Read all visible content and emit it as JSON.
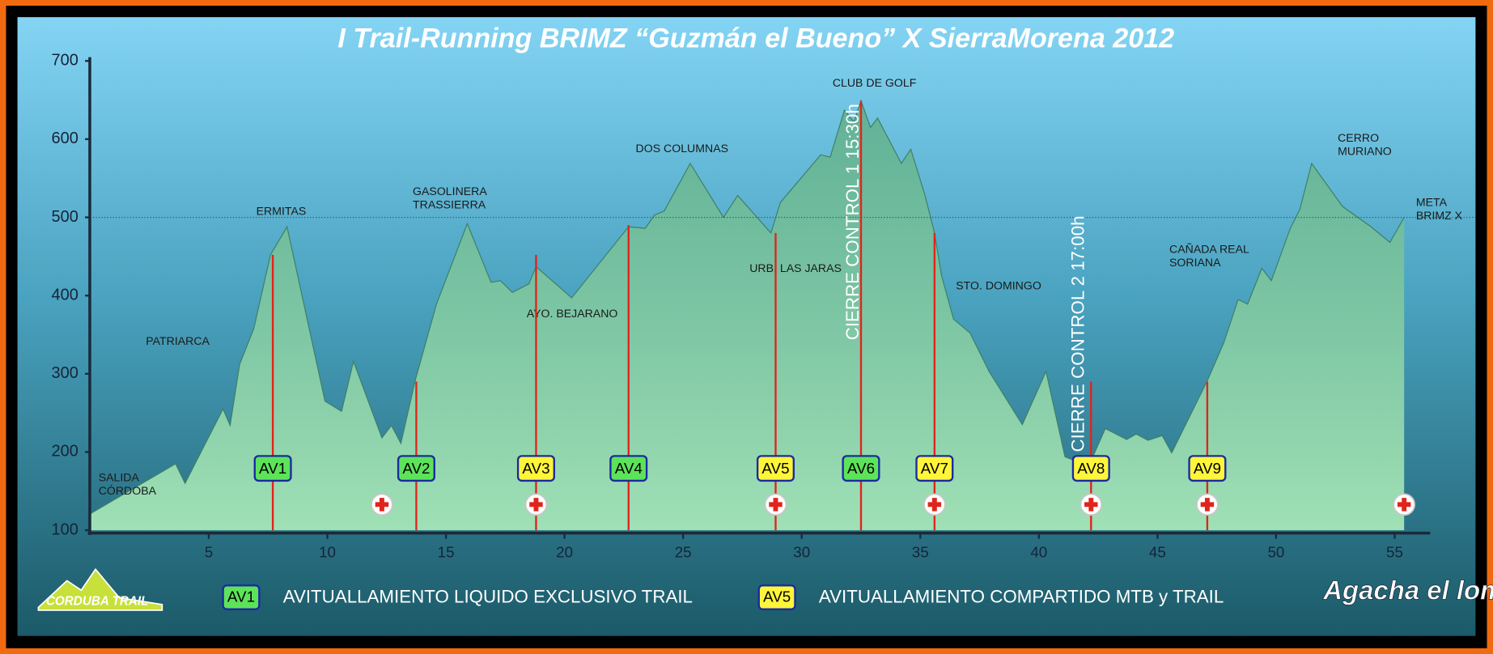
{
  "chart_data": {
    "type": "area",
    "title": "I Trail-Running BRIMZ “Guzmán el Bueno” X SierraMorena 2012",
    "x": [
      0,
      3.6,
      4.0,
      5.6,
      5.9,
      6.3,
      6.9,
      7.6,
      8.3,
      9.9,
      10.6,
      11.1,
      12.3,
      12.7,
      13.1,
      13.7,
      14.6,
      15.9,
      16.9,
      17.3,
      17.8,
      18.5,
      18.8,
      20.3,
      22.7,
      23.4,
      23.8,
      24.2,
      25.3,
      26.7,
      27.3,
      28.7,
      29.1,
      30.8,
      31.2,
      31.8,
      32.2,
      32.5,
      32.9,
      33.2,
      34.2,
      34.6,
      35.2,
      35.6,
      35.9,
      36.4,
      37.1,
      37.9,
      39.3,
      40.3,
      41.1,
      42.1,
      42.8,
      43.7,
      44.1,
      44.6,
      45.2,
      45.6,
      47.1,
      47.8,
      48.4,
      48.8,
      49.4,
      49.8,
      50.6,
      51.0,
      51.5,
      52.8,
      54.0,
      54.8,
      55.4
    ],
    "values": [
      121,
      185,
      160,
      255,
      234,
      312,
      358,
      452,
      488,
      265,
      252,
      316,
      218,
      234,
      211,
      291,
      389,
      492,
      417,
      419,
      404,
      415,
      437,
      397,
      488,
      486,
      503,
      508,
      569,
      500,
      528,
      480,
      519,
      580,
      577,
      637,
      622,
      649,
      615,
      627,
      569,
      587,
      528,
      480,
      425,
      370,
      352,
      303,
      235,
      303,
      194,
      182,
      230,
      216,
      223,
      215,
      221,
      199,
      291,
      340,
      395,
      389,
      435,
      419,
      486,
      510,
      569,
      514,
      488,
      468,
      500
    ],
    "color": "#8fd8a8",
    "xlim": [
      0,
      56.5
    ],
    "ylim": [
      100,
      700
    ],
    "xticks": [
      5,
      10,
      15,
      20,
      25,
      30,
      35,
      40,
      45,
      50,
      55
    ],
    "yticks": [
      100,
      200,
      300,
      400,
      500,
      600,
      700
    ],
    "reference_line": 500,
    "places": [
      {
        "lines": [
          "SALIDA",
          "CÓRDOBA"
        ],
        "x": 0.35,
        "y": 158
      },
      {
        "lines": [
          "PATRIARCA"
        ],
        "x": 2.35,
        "y": 341
      },
      {
        "lines": [
          "ERMITAS"
        ],
        "x": 7.0,
        "y": 507
      },
      {
        "lines": [
          "GASOLINERA",
          "TRASSIERRA"
        ],
        "x": 13.6,
        "y": 524
      },
      {
        "lines": [
          "AYO. BEJARANO"
        ],
        "x": 18.4,
        "y": 376
      },
      {
        "lines": [
          "DOS COLUMNAS"
        ],
        "x": 23.0,
        "y": 587
      },
      {
        "lines": [
          "URB. LAS JARAS"
        ],
        "x": 27.8,
        "y": 434
      },
      {
        "lines": [
          "CLUB DE GOLF"
        ],
        "x": 31.3,
        "y": 671
      },
      {
        "lines": [
          "STO. DOMINGO"
        ],
        "x": 36.5,
        "y": 412
      },
      {
        "lines": [
          "CAÑADA REAL",
          "SORIANA"
        ],
        "x": 45.5,
        "y": 450
      },
      {
        "lines": [
          "CERRO",
          "MURIANO"
        ],
        "x": 52.6,
        "y": 592
      },
      {
        "lines": [
          "META",
          "BRIMZ X"
        ],
        "x": 55.9,
        "y": 510
      }
    ],
    "stations": [
      {
        "label": "AV1",
        "km": 7.7,
        "elevation": 452,
        "color": "#5de35a"
      },
      {
        "label": "AV2",
        "km": 13.75,
        "elevation": 290,
        "color": "#5de35a"
      },
      {
        "label": "AV3",
        "km": 18.8,
        "elevation": 452,
        "color": "#fff53a"
      },
      {
        "label": "AV4",
        "km": 22.7,
        "elevation": 490,
        "color": "#5de35a"
      },
      {
        "label": "AV5",
        "km": 28.9,
        "elevation": 480,
        "color": "#fff53a"
      },
      {
        "label": "AV6",
        "km": 32.5,
        "elevation": 649,
        "color": "#5de35a"
      },
      {
        "label": "AV7",
        "km": 35.6,
        "elevation": 480,
        "color": "#fff53a"
      },
      {
        "label": "AV8",
        "km": 42.2,
        "elevation": 290,
        "color": "#fff53a"
      },
      {
        "label": "AV9",
        "km": 47.1,
        "elevation": 290,
        "color": "#fff53a"
      }
    ],
    "medical": [
      12.3,
      18.8,
      28.9,
      35.6,
      42.2,
      47.1,
      55.4
    ],
    "cutoffs": [
      {
        "text": "CIERRE CONTROL 1 15:30h",
        "x": 32.2,
        "y": 343
      },
      {
        "text": "CIERRE CONTROL 2 17:00h",
        "x": 41.7,
        "y": 200
      }
    ],
    "legend": [
      {
        "sample": "AV1",
        "text": "AVITUALLAMIENTO LIQUIDO EXCLUSIVO TRAIL",
        "color": "#5de35a"
      },
      {
        "sample": "AV5",
        "text": "AVITUALLAMIENTO COMPARTIDO MTB y TRAIL",
        "color": "#fff53a"
      }
    ],
    "logos": [
      "CORDUBA TRAIL",
      "Agacha el lomo"
    ]
  }
}
